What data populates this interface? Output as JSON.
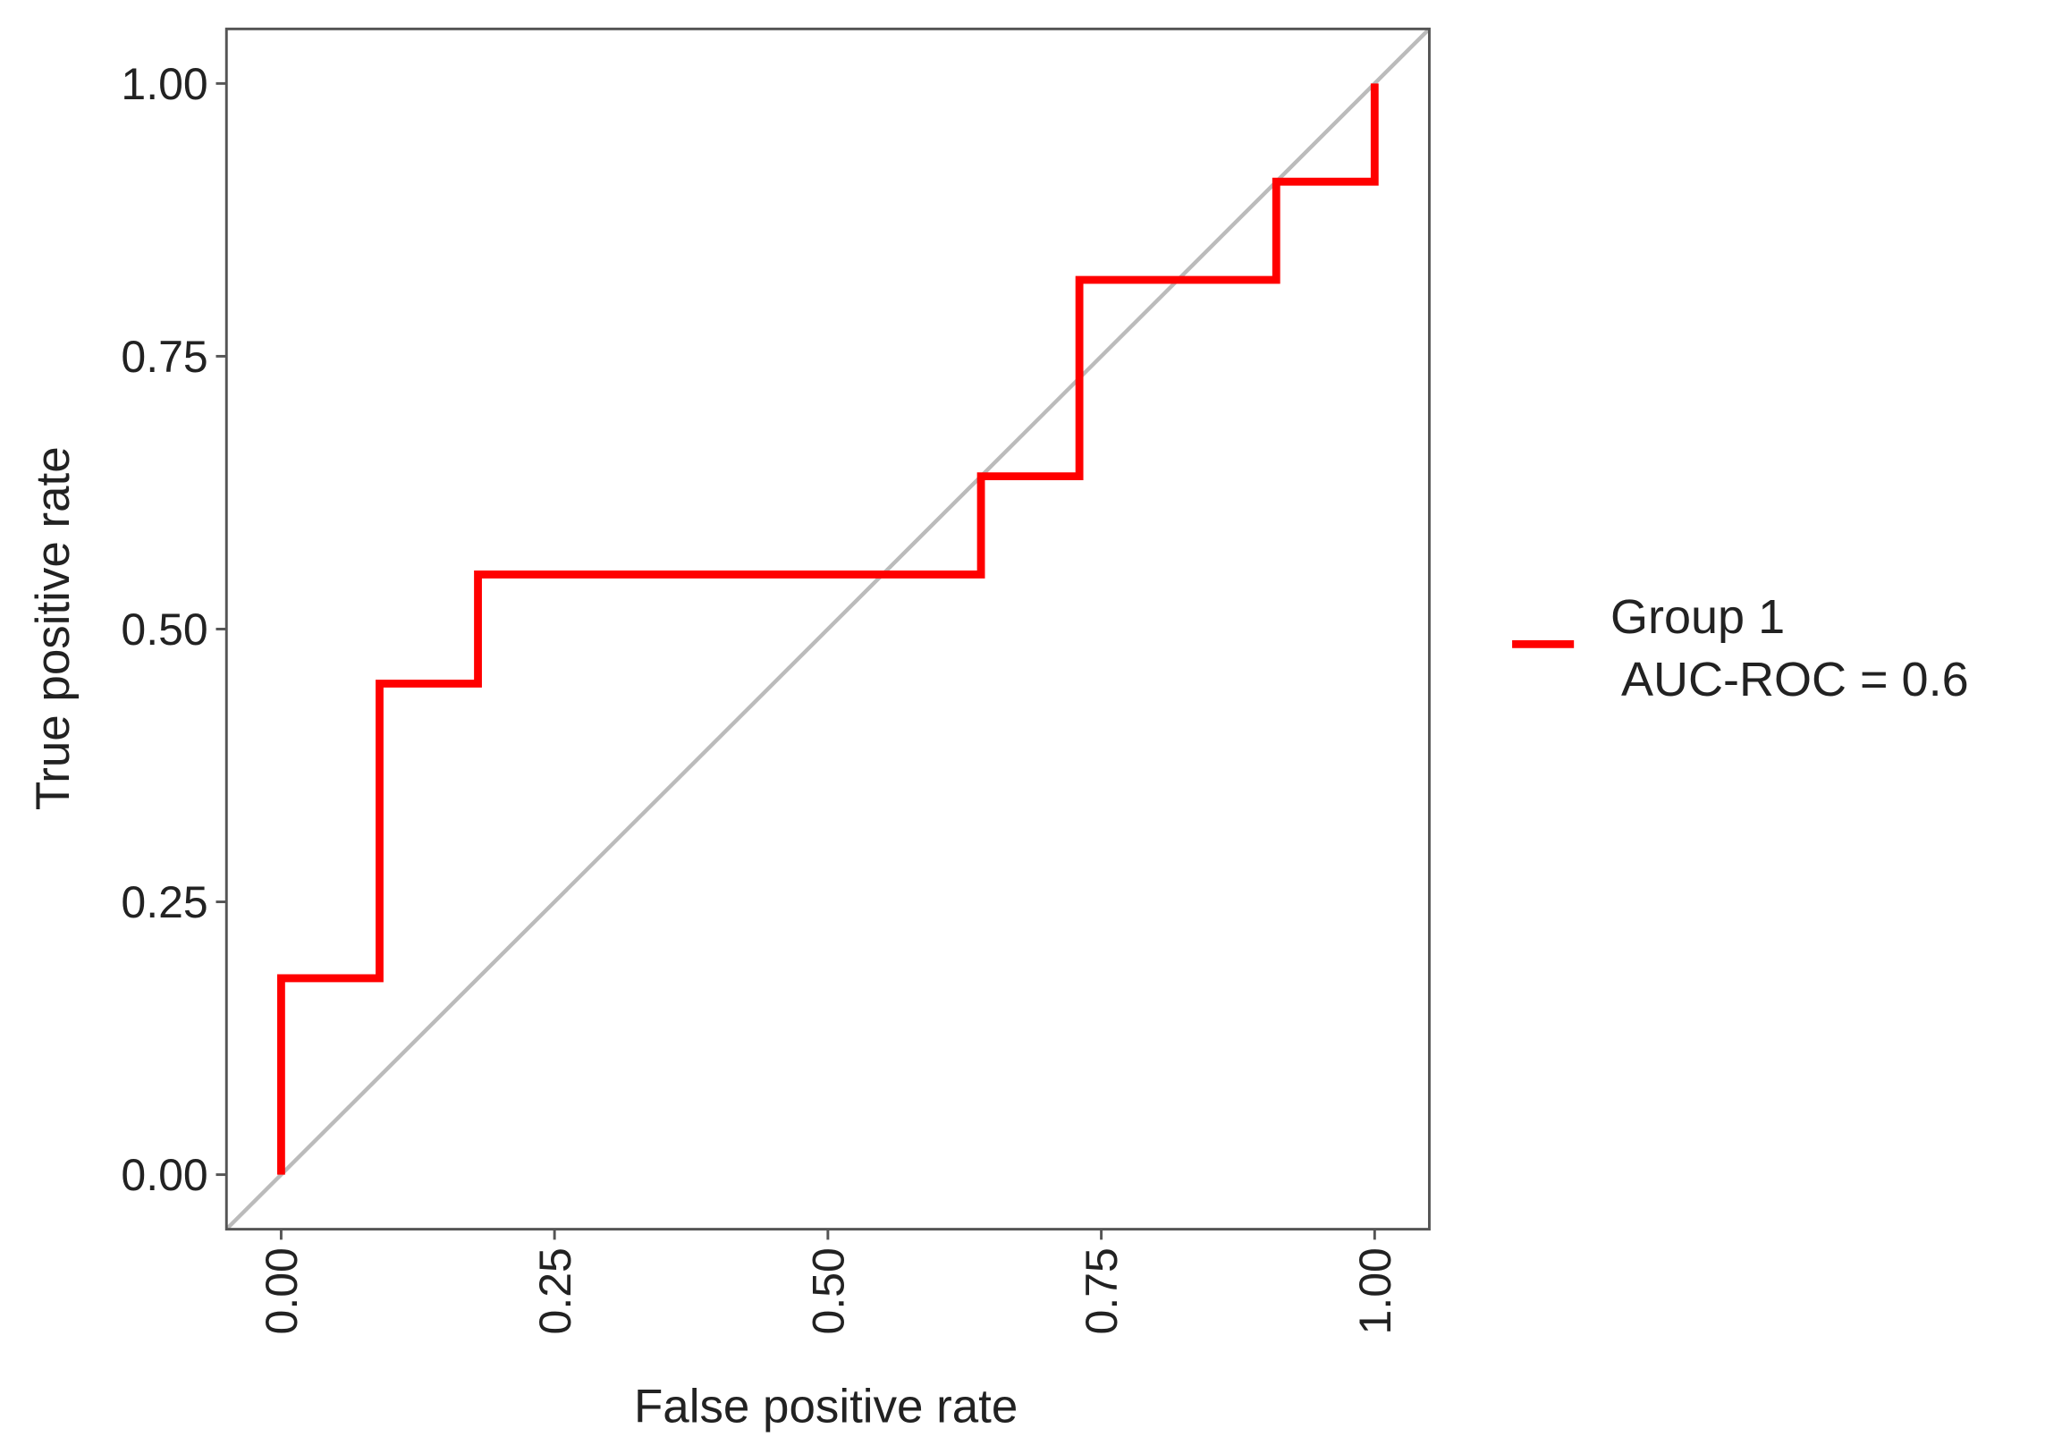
{
  "chart_data": {
    "type": "line",
    "xlabel": "False positive rate",
    "ylabel": "True positive rate",
    "x": [
      0,
      0,
      0.09,
      0.09,
      0.18,
      0.18,
      0.64,
      0.64,
      0.73,
      0.73,
      0.91,
      0.91,
      1,
      1
    ],
    "series": [
      {
        "name": "Group 1\n AUC-ROC = 0.6",
        "color": "#ff0000",
        "values": [
          0,
          0.18,
          0.18,
          0.45,
          0.45,
          0.55,
          0.55,
          0.64,
          0.64,
          0.82,
          0.82,
          0.91,
          0.91,
          1
        ]
      }
    ],
    "xlim": [
      -0.05,
      1.05
    ],
    "ylim": [
      -0.05,
      1.05
    ],
    "xticks": [
      {
        "value": 0,
        "label": "0.00"
      },
      {
        "value": 0.25,
        "label": "0.25"
      },
      {
        "value": 0.5,
        "label": "0.50"
      },
      {
        "value": 0.75,
        "label": "0.75"
      },
      {
        "value": 1,
        "label": "1.00"
      }
    ],
    "yticks": [
      {
        "value": 0,
        "label": "0.00"
      },
      {
        "value": 0.25,
        "label": "0.25"
      },
      {
        "value": 0.5,
        "label": "0.50"
      },
      {
        "value": 0.75,
        "label": "0.75"
      },
      {
        "value": 1,
        "label": "1.00"
      }
    ],
    "grid": false,
    "legend": "right"
  }
}
